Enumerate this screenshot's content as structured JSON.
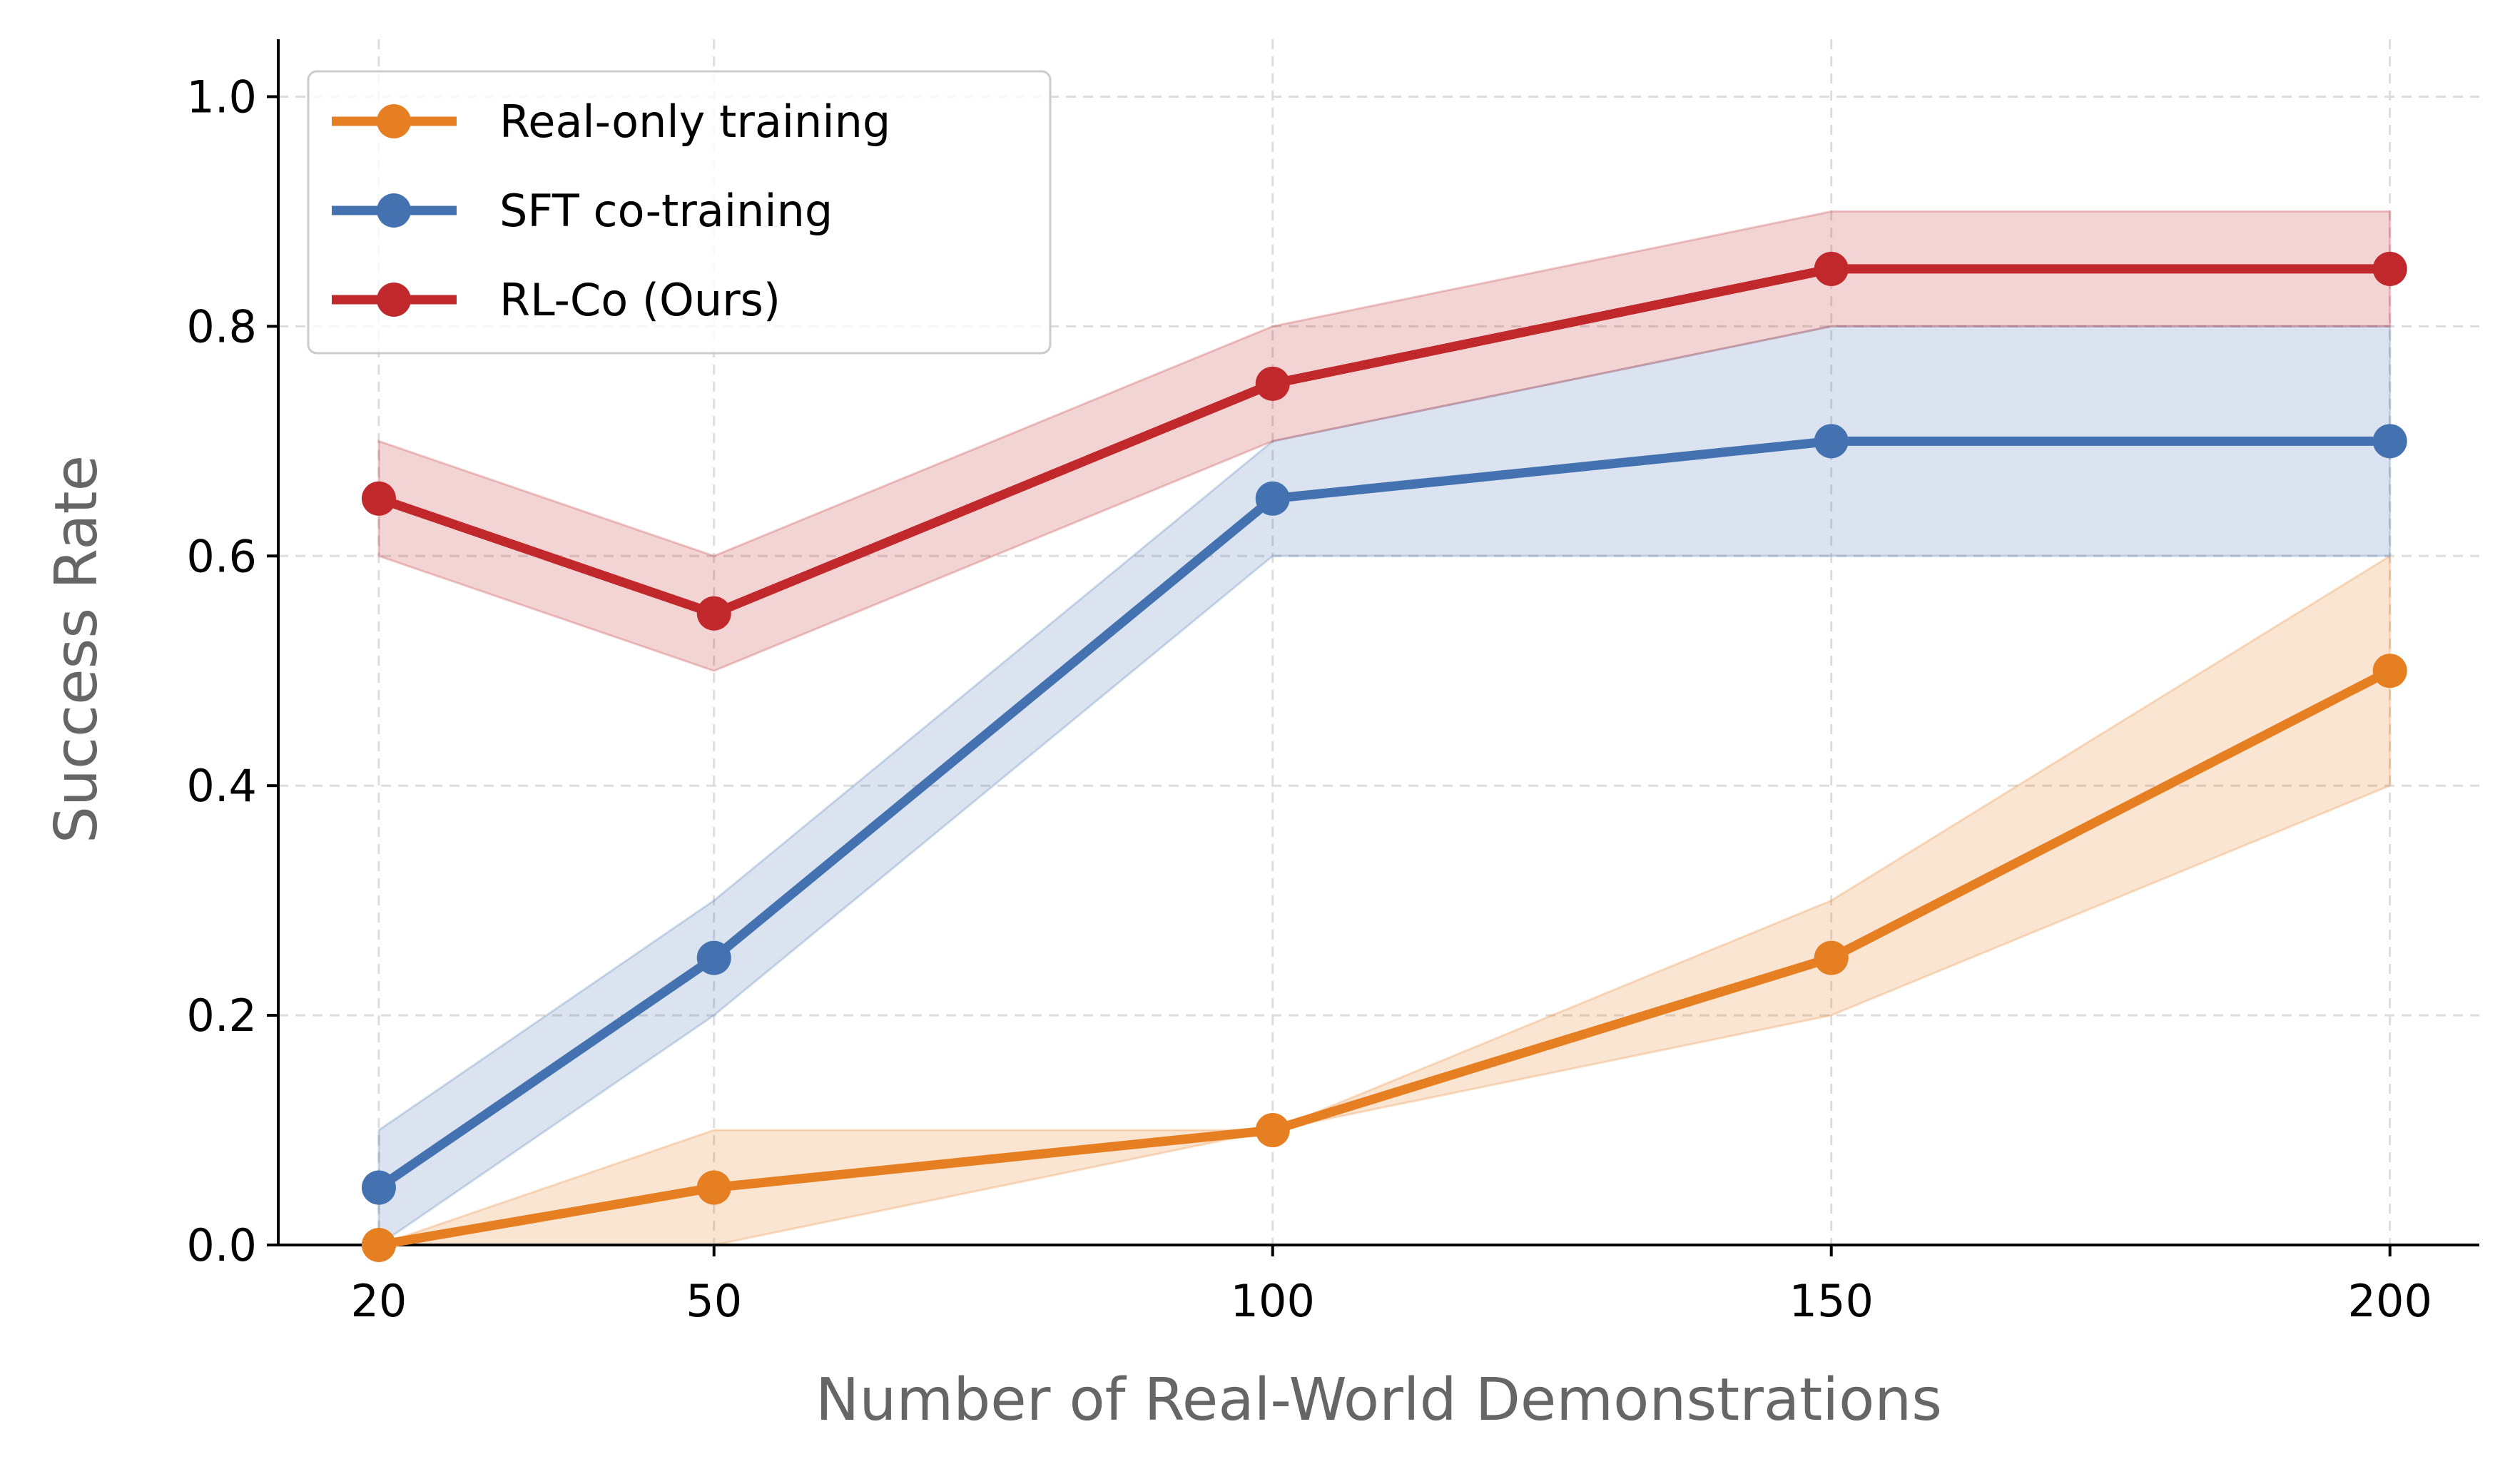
{
  "chart_data": {
    "type": "line",
    "title": "",
    "xlabel": "Number of Real-World Demonstrations",
    "ylabel": "Success Rate",
    "x": [
      20,
      50,
      100,
      150,
      200
    ],
    "x_tick_labels": [
      "20",
      "50",
      "100",
      "150",
      "200"
    ],
    "ylim": [
      0.0,
      1.05
    ],
    "y_ticks": [
      0.0,
      0.2,
      0.4,
      0.6,
      0.8,
      1.0
    ],
    "y_tick_labels": [
      "0.0",
      "0.2",
      "0.4",
      "0.6",
      "0.8",
      "1.0"
    ],
    "grid": true,
    "grid_style": "dashed",
    "legend_position": "top-left",
    "series": [
      {
        "name": "Real-only training",
        "color": "#e67e22",
        "values": [
          0.0,
          0.05,
          0.1,
          0.25,
          0.5
        ],
        "lower": [
          0.0,
          0.0,
          0.1,
          0.2,
          0.4
        ],
        "upper": [
          0.0,
          0.1,
          0.1,
          0.3,
          0.6
        ]
      },
      {
        "name": "SFT co-training",
        "color": "#4472b0",
        "values": [
          0.05,
          0.25,
          0.65,
          0.7,
          0.7
        ],
        "lower": [
          0.0,
          0.2,
          0.6,
          0.6,
          0.6
        ],
        "upper": [
          0.1,
          0.3,
          0.7,
          0.8,
          0.8
        ]
      },
      {
        "name": "RL-Co (Ours)",
        "color": "#c0282c",
        "values": [
          0.65,
          0.55,
          0.75,
          0.85,
          0.85
        ],
        "lower": [
          0.6,
          0.5,
          0.7,
          0.8,
          0.8
        ],
        "upper": [
          0.7,
          0.6,
          0.8,
          0.9,
          0.9
        ]
      }
    ]
  }
}
